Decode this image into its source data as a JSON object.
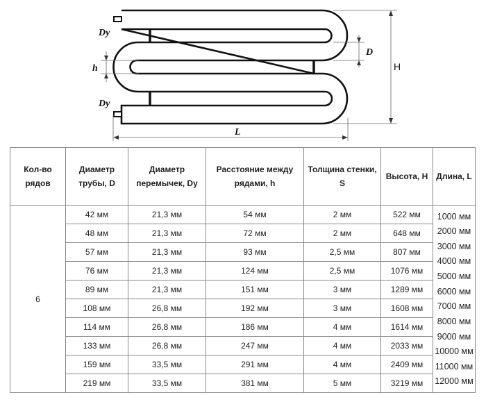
{
  "diagram": {
    "labels": {
      "dy_top": "Dy",
      "dy_bottom": "Dy",
      "h": "h",
      "D": "D",
      "H": "H",
      "L": "L"
    }
  },
  "table": {
    "headers": [
      "Кол-во рядов",
      "Диаметр трубы, D",
      "Диаметр перемычек, Dy",
      "Расстояние между рядами, h",
      "Толщина стенки, S",
      "Высота, H",
      "Длина, L"
    ],
    "rows_count": "6",
    "rows": [
      [
        "42 мм",
        "21,3 мм",
        "54 мм",
        "2 мм",
        "522 мм"
      ],
      [
        "48 мм",
        "21,3 мм",
        "72 мм",
        "2 мм",
        "648 мм"
      ],
      [
        "57 мм",
        "21,3 мм",
        "93 мм",
        "2,5 мм",
        "807 мм"
      ],
      [
        "76 мм",
        "21,3 мм",
        "124 мм",
        "2,5 мм",
        "1076 мм"
      ],
      [
        "89 мм",
        "21,3 мм",
        "151 мм",
        "3 мм",
        "1289 мм"
      ],
      [
        "108 мм",
        "26,8 мм",
        "192 мм",
        "3 мм",
        "1608 мм"
      ],
      [
        "114 мм",
        "26,8 мм",
        "186 мм",
        "4 мм",
        "1614 мм"
      ],
      [
        "133 мм",
        "26,8 мм",
        "247 мм",
        "4 мм",
        "2033 мм"
      ],
      [
        "159 мм",
        "33,5 мм",
        "291 мм",
        "4 мм",
        "2409 мм"
      ],
      [
        "219 мм",
        "33,5 мм",
        "381 мм",
        "5 мм",
        "3219 мм"
      ]
    ],
    "lengths": [
      "1000 мм",
      "2000 мм",
      "3000 мм",
      "4000 мм",
      "5000 мм",
      "6000 мм",
      "7000 мм",
      "8000 мм",
      "9000 мм",
      "10000 мм",
      "11000 мм",
      "12000 мм"
    ]
  }
}
